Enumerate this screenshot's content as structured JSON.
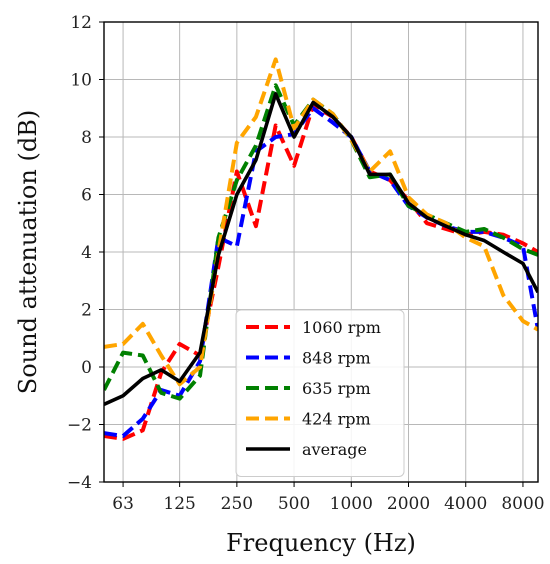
{
  "chart_data": {
    "type": "line",
    "xlabel": "Frequency (Hz)",
    "ylabel": "Sound attenuation (dB)",
    "x_scale": "log2",
    "xlim": [
      50,
      9600
    ],
    "ylim": [
      -4,
      12
    ],
    "x_ticks": [
      63,
      125,
      250,
      500,
      1000,
      2000,
      4000,
      8000
    ],
    "x_tick_labels": [
      "63",
      "125",
      "250",
      "500",
      "1000",
      "2000",
      "4000",
      "8000"
    ],
    "y_ticks": [
      -4,
      -2,
      0,
      2,
      4,
      6,
      8,
      10,
      12
    ],
    "y_tick_labels": [
      "−4",
      "−2",
      "0",
      "2",
      "4",
      "6",
      "8",
      "10",
      "12"
    ],
    "grid": true,
    "legend_position": "bottom-center",
    "x": [
      50,
      63,
      80,
      100,
      125,
      160,
      200,
      250,
      315,
      400,
      500,
      630,
      800,
      1000,
      1250,
      1600,
      2000,
      2500,
      3150,
      4000,
      5000,
      6300,
      8000,
      9600
    ],
    "series": [
      {
        "name": "1060 rpm",
        "color": "#ff0000",
        "dash": "dashed",
        "values": [
          -2.4,
          -2.5,
          -2.2,
          -0.2,
          0.8,
          0.4,
          3.5,
          6.8,
          4.9,
          8.4,
          7.0,
          9.1,
          8.7,
          8.0,
          6.8,
          6.5,
          5.8,
          5.0,
          4.8,
          4.6,
          4.7,
          4.6,
          4.3,
          4.0
        ]
      },
      {
        "name": "848 rpm",
        "color": "#0000ff",
        "dash": "dashed",
        "values": [
          -2.3,
          -2.4,
          -1.8,
          -0.8,
          -1.0,
          0.2,
          4.5,
          4.2,
          7.5,
          8.0,
          8.1,
          9.0,
          8.5,
          8.0,
          6.8,
          6.5,
          5.6,
          5.2,
          4.9,
          4.7,
          4.7,
          4.5,
          4.2,
          1.3
        ]
      },
      {
        "name": "635 rpm",
        "color": "#008000",
        "dash": "dashed",
        "values": [
          -0.8,
          0.5,
          0.4,
          -0.9,
          -1.1,
          -0.3,
          4.5,
          6.5,
          7.7,
          9.8,
          8.4,
          9.3,
          8.8,
          7.9,
          6.6,
          6.7,
          5.6,
          5.3,
          5.0,
          4.7,
          4.8,
          4.5,
          4.1,
          3.9
        ]
      },
      {
        "name": "424 rpm",
        "color": "#ffa500",
        "dash": "dashed",
        "values": [
          0.7,
          0.8,
          1.5,
          0.4,
          -0.6,
          0.0,
          4.0,
          7.8,
          8.7,
          10.7,
          8.3,
          9.3,
          8.8,
          7.9,
          6.8,
          7.5,
          5.9,
          5.3,
          5.0,
          4.5,
          4.2,
          2.5,
          1.6,
          1.3
        ]
      },
      {
        "name": "average",
        "color": "#000000",
        "dash": "solid",
        "values": [
          -1.3,
          -1.0,
          -0.4,
          -0.1,
          -0.5,
          0.5,
          3.9,
          6.0,
          7.2,
          9.5,
          8.0,
          9.2,
          8.7,
          8.0,
          6.7,
          6.7,
          5.7,
          5.2,
          4.9,
          4.6,
          4.4,
          4.0,
          3.6,
          2.6
        ]
      }
    ]
  }
}
